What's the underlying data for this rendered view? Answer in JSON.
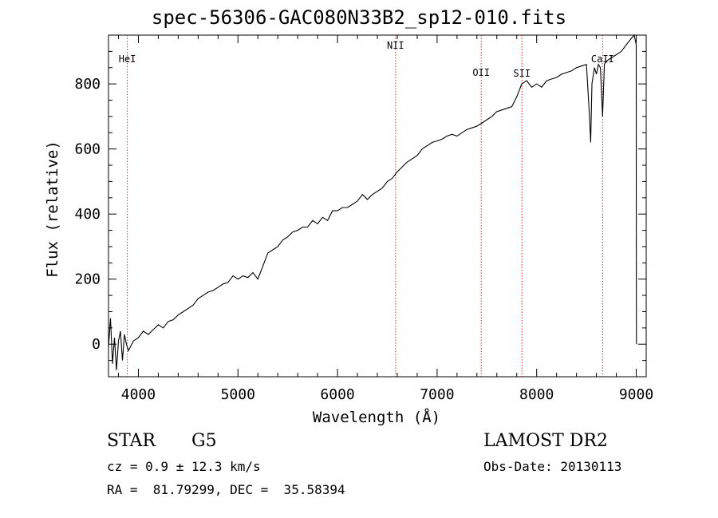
{
  "chart_data": {
    "type": "line",
    "title": "spec-56306-GAC080N33B2_sp12-010.fits",
    "xlabel": "Wavelength (Å)",
    "ylabel": "Flux (relative)",
    "xlim": [
      3700,
      9100
    ],
    "ylim": [
      -100,
      950
    ],
    "xticks": [
      4000,
      5000,
      6000,
      7000,
      8000,
      9000
    ],
    "yticks": [
      0,
      200,
      400,
      600,
      800
    ],
    "grid": false,
    "series": [
      {
        "x": [
          3700,
          3720,
          3740,
          3760,
          3780,
          3800,
          3820,
          3840,
          3860,
          3880,
          3900,
          3950,
          4000,
          4050,
          4100,
          4150,
          4200,
          4250,
          4300,
          4350,
          4400,
          4450,
          4500,
          4550,
          4600,
          4650,
          4700,
          4750,
          4800,
          4850,
          4900,
          4950,
          5000,
          5050,
          5100,
          5150,
          5200,
          5250,
          5300,
          5350,
          5400,
          5450,
          5500,
          5550,
          5600,
          5650,
          5700,
          5750,
          5800,
          5850,
          5900,
          5950,
          6000,
          6050,
          6100,
          6150,
          6200,
          6250,
          6300,
          6350,
          6400,
          6450,
          6500,
          6550,
          6600,
          6650,
          6700,
          6750,
          6800,
          6850,
          6900,
          6950,
          7000,
          7050,
          7100,
          7150,
          7200,
          7250,
          7300,
          7350,
          7400,
          7450,
          7500,
          7550,
          7600,
          7650,
          7700,
          7750,
          7800,
          7850,
          7900,
          7950,
          8000,
          8050,
          8100,
          8150,
          8200,
          8250,
          8300,
          8350,
          8400,
          8450,
          8500,
          8530,
          8542,
          8555,
          8580,
          8600,
          8620,
          8640,
          8662,
          8680,
          8700,
          8750,
          8800,
          8850,
          8900,
          8950,
          8980,
          9000,
          9001,
          9002
        ],
        "y": [
          -10,
          80,
          -60,
          20,
          -80,
          10,
          40,
          -50,
          30,
          0,
          -20,
          10,
          20,
          40,
          30,
          45,
          60,
          50,
          70,
          75,
          90,
          100,
          110,
          120,
          140,
          150,
          160,
          165,
          175,
          185,
          190,
          210,
          200,
          210,
          205,
          220,
          200,
          240,
          280,
          290,
          300,
          320,
          330,
          345,
          350,
          360,
          360,
          380,
          370,
          390,
          380,
          410,
          410,
          420,
          420,
          430,
          440,
          460,
          445,
          460,
          470,
          480,
          500,
          510,
          530,
          545,
          560,
          570,
          580,
          600,
          610,
          620,
          625,
          630,
          640,
          645,
          640,
          650,
          660,
          665,
          670,
          680,
          690,
          700,
          715,
          720,
          725,
          730,
          760,
          800,
          810,
          790,
          800,
          790,
          810,
          815,
          820,
          830,
          835,
          840,
          850,
          855,
          860,
          700,
          620,
          800,
          850,
          830,
          860,
          850,
          700,
          860,
          870,
          880,
          890,
          900,
          920,
          940,
          950,
          920,
          200,
          0
        ]
      }
    ],
    "annotations": [
      {
        "label": "HeI",
        "x": 3889
      },
      {
        "label": "NII",
        "x": 6583
      },
      {
        "label": "OII",
        "x": 7443
      },
      {
        "label": "SII",
        "x": 7852
      },
      {
        "label": "CaII",
        "x": 8662
      }
    ]
  },
  "info": {
    "class_label": "STAR",
    "subclass_label": "G5",
    "cz_line": "cz = 0.9 ± 12.3 km/s",
    "radec_line": "RA =  81.79299, DEC =  35.58394",
    "survey_label": "LAMOST DR2",
    "obs_date_line": "Obs-Date: 20130113"
  },
  "colors": {
    "spectrum": "#000000",
    "annotation_line": "#c8322d",
    "axis": "#000000",
    "background": "#ffffff"
  }
}
